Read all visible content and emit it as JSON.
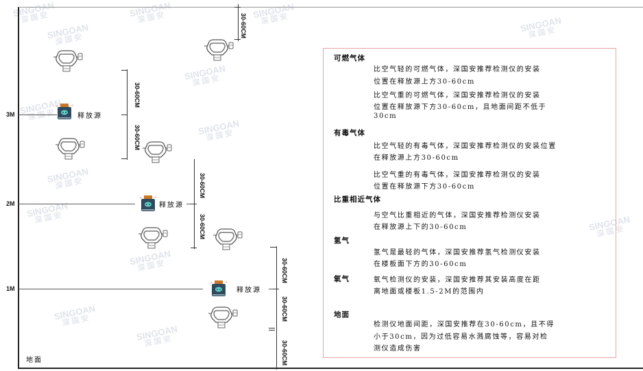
{
  "watermark": {
    "brand": "SINGOAN",
    "cn": "深国安"
  },
  "levels": [
    "3M",
    "2M",
    "1M"
  ],
  "ground_label": "地面",
  "source_label": "释放源",
  "dimension_label": "30-60CM",
  "notes": {
    "flammable": {
      "heading": "可燃气体",
      "lighter": [
        "比空气轻的可燃气体，深国安推荐检测仪的安装",
        "位置在释放源上方30-60cm"
      ],
      "heavier": [
        "比空气重的可燃气体，深国安推荐检测仪的安装",
        "位置在释放源下方30-60cm，且地面间距不低于",
        "30cm"
      ]
    },
    "toxic": {
      "heading": "有毒气体",
      "lighter": [
        "比空气轻的有毒气体，深国安推荐检测仪的安装位置",
        "在释放源上方30-60cm"
      ],
      "heavier": [
        "比空气重的有毒气体，深国安推荐检测仪的安装",
        "位置在释放源下方30-60cm"
      ]
    },
    "similar": {
      "heading": "比重相近气体",
      "text": [
        "与空气比重相近的气体，深国安推荐检测仪安装",
        "在释放源上下的30-60cm"
      ]
    },
    "hydrogen": {
      "heading": "氢气",
      "text": [
        "氢气是最轻的气体，深国安推荐氢气检测仪安装",
        "在楼板面下方的30-60cm"
      ]
    },
    "oxygen": {
      "heading": "氧气",
      "text": [
        "氧气检测仪的安装，深国安推荐其安装高度在距",
        "离地面或楼板1.5-2M的范围内"
      ]
    },
    "ground": {
      "heading": "地面",
      "text": [
        "检测仪地面间距，深国安推荐在30-60cm，且不得",
        "小于30cm，因为过低容易水溅腐蚀等，容易对检",
        "测仪造成伤害"
      ]
    }
  },
  "colors": {
    "frame": "#222222",
    "note_border": "#e8a3a3",
    "source_body": "#2f4a5c",
    "source_cap": "#c9772a",
    "source_face": "#5fd3c8"
  }
}
